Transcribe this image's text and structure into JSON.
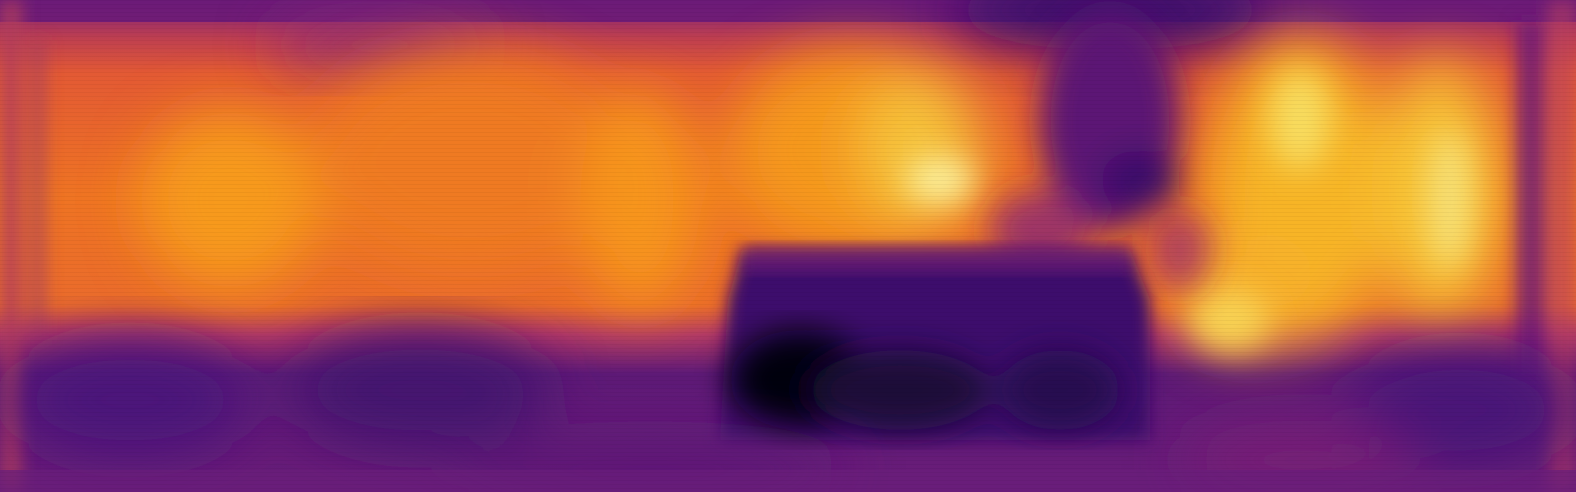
{
  "image": {
    "kind": "depth-map heatmap",
    "colormap": "inferno",
    "palette": {
      "darkest": "#000004",
      "deep_purple": "#3b0f70",
      "purple": "#6a1a7a",
      "magenta": "#a02b77",
      "red": "#c84a52",
      "orange": "#f07a22",
      "amber": "#f9a91a",
      "yellow": "#f6e76d"
    }
  }
}
